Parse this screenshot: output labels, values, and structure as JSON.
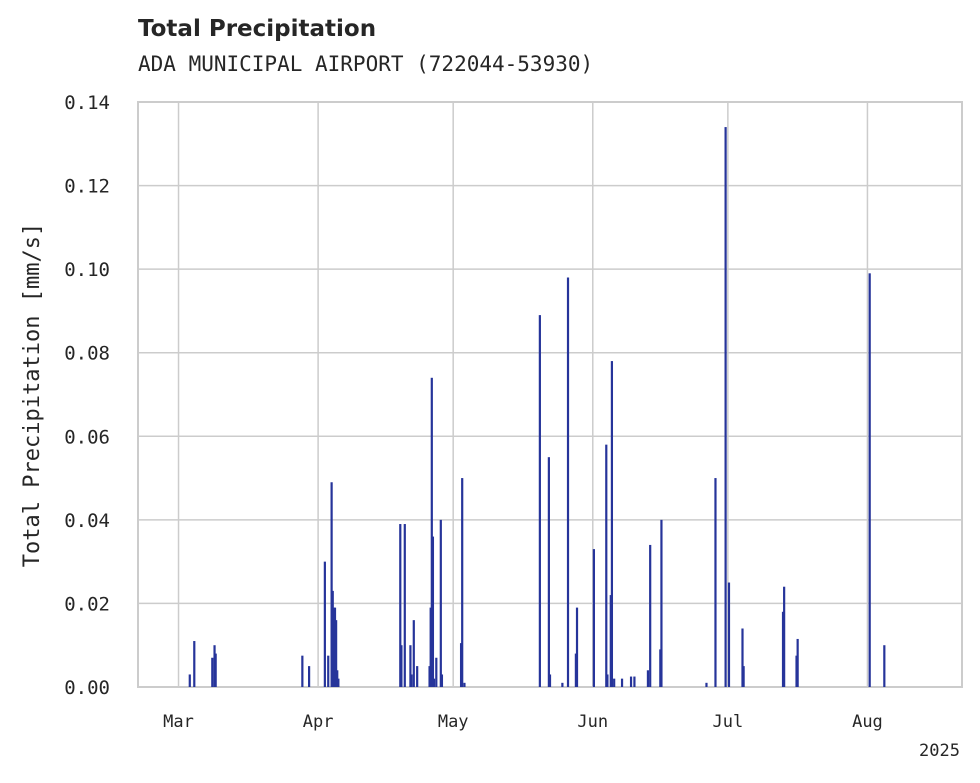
{
  "chart_data": {
    "type": "bar",
    "title": "Total Precipitation",
    "subtitle": "ADA MUNICIPAL AIRPORT (722044-53930)",
    "ylabel": "Total Precipitation [mm/s]",
    "xlabel": "",
    "ylim": [
      0,
      0.14
    ],
    "yticks": [
      "0.00",
      "0.02",
      "0.04",
      "0.06",
      "0.08",
      "0.10",
      "0.12",
      "0.14"
    ],
    "xlim": [
      "2025-02-20",
      "2025-08-22"
    ],
    "xticks": [
      {
        "date": "2025-03-01",
        "label": "Mar"
      },
      {
        "date": "2025-04-01",
        "label": "Apr"
      },
      {
        "date": "2025-05-01",
        "label": "May"
      },
      {
        "date": "2025-06-01",
        "label": "Jun"
      },
      {
        "date": "2025-07-01",
        "label": "Jul"
      },
      {
        "date": "2025-08-01",
        "label": "Aug"
      }
    ],
    "year_label": "2025",
    "grid": true,
    "bar_color": "#26349a",
    "series": [
      {
        "x": [
          "2025-03-03T12:00",
          "2025-03-04T12:00",
          "2025-03-08T12:00",
          "2025-03-09T00:00",
          "2025-03-09T06:00",
          "2025-03-28T12:00",
          "2025-03-30T00:00",
          "2025-04-02T12:00",
          "2025-04-03T06:00",
          "2025-04-04T00:00",
          "2025-04-04T06:00",
          "2025-04-04T12:00",
          "2025-04-04T18:00",
          "2025-04-05T00:00",
          "2025-04-05T06:00",
          "2025-04-05T12:00",
          "2025-04-19T06:00",
          "2025-04-19T12:00",
          "2025-04-20T06:00",
          "2025-04-21T12:00",
          "2025-04-21T18:00",
          "2025-04-22T06:00",
          "2025-04-23T00:00",
          "2025-04-25T18:00",
          "2025-04-26T00:00",
          "2025-04-26T06:00",
          "2025-04-26T12:00",
          "2025-04-26T18:00",
          "2025-04-27T06:00",
          "2025-04-28T06:00",
          "2025-04-28T12:00",
          "2025-05-02T18:00",
          "2025-05-03T00:00",
          "2025-05-03T12:00",
          "2025-05-20T06:00",
          "2025-05-22T06:00",
          "2025-05-22T12:00",
          "2025-05-25T06:00",
          "2025-05-26T12:00",
          "2025-05-28T06:00",
          "2025-05-28T12:00",
          "2025-06-01T06:00",
          "2025-06-04T00:00",
          "2025-06-04T06:00",
          "2025-06-05T00:00",
          "2025-06-05T06:00",
          "2025-06-05T18:00",
          "2025-06-07T12:00",
          "2025-06-09T12:00",
          "2025-06-10T06:00",
          "2025-06-13T06:00",
          "2025-06-13T18:00",
          "2025-06-16T00:00",
          "2025-06-16T06:00",
          "2025-06-26T06:00",
          "2025-06-28T06:00",
          "2025-06-30T12:00",
          "2025-07-01T06:00",
          "2025-07-04T06:00",
          "2025-07-04T12:00",
          "2025-07-13T06:00",
          "2025-07-13T12:00",
          "2025-07-16T06:00",
          "2025-07-16T12:00",
          "2025-08-01T12:00",
          "2025-08-04T18:00"
        ],
        "values": [
          0.003,
          0.011,
          0.007,
          0.01,
          0.008,
          0.0075,
          0.005,
          0.03,
          0.0075,
          0.049,
          0.023,
          0.019,
          0.019,
          0.016,
          0.004,
          0.002,
          0.039,
          0.01,
          0.039,
          0.01,
          0.003,
          0.016,
          0.005,
          0.005,
          0.019,
          0.074,
          0.036,
          0.002,
          0.007,
          0.04,
          0.003,
          0.0105,
          0.05,
          0.001,
          0.089,
          0.055,
          0.003,
          0.001,
          0.098,
          0.008,
          0.019,
          0.033,
          0.058,
          0.003,
          0.022,
          0.078,
          0.002,
          0.002,
          0.0025,
          0.0025,
          0.004,
          0.034,
          0.009,
          0.04,
          0.001,
          0.05,
          0.134,
          0.025,
          0.014,
          0.005,
          0.018,
          0.024,
          0.0075,
          0.0115,
          0.099,
          0.01
        ]
      }
    ]
  }
}
